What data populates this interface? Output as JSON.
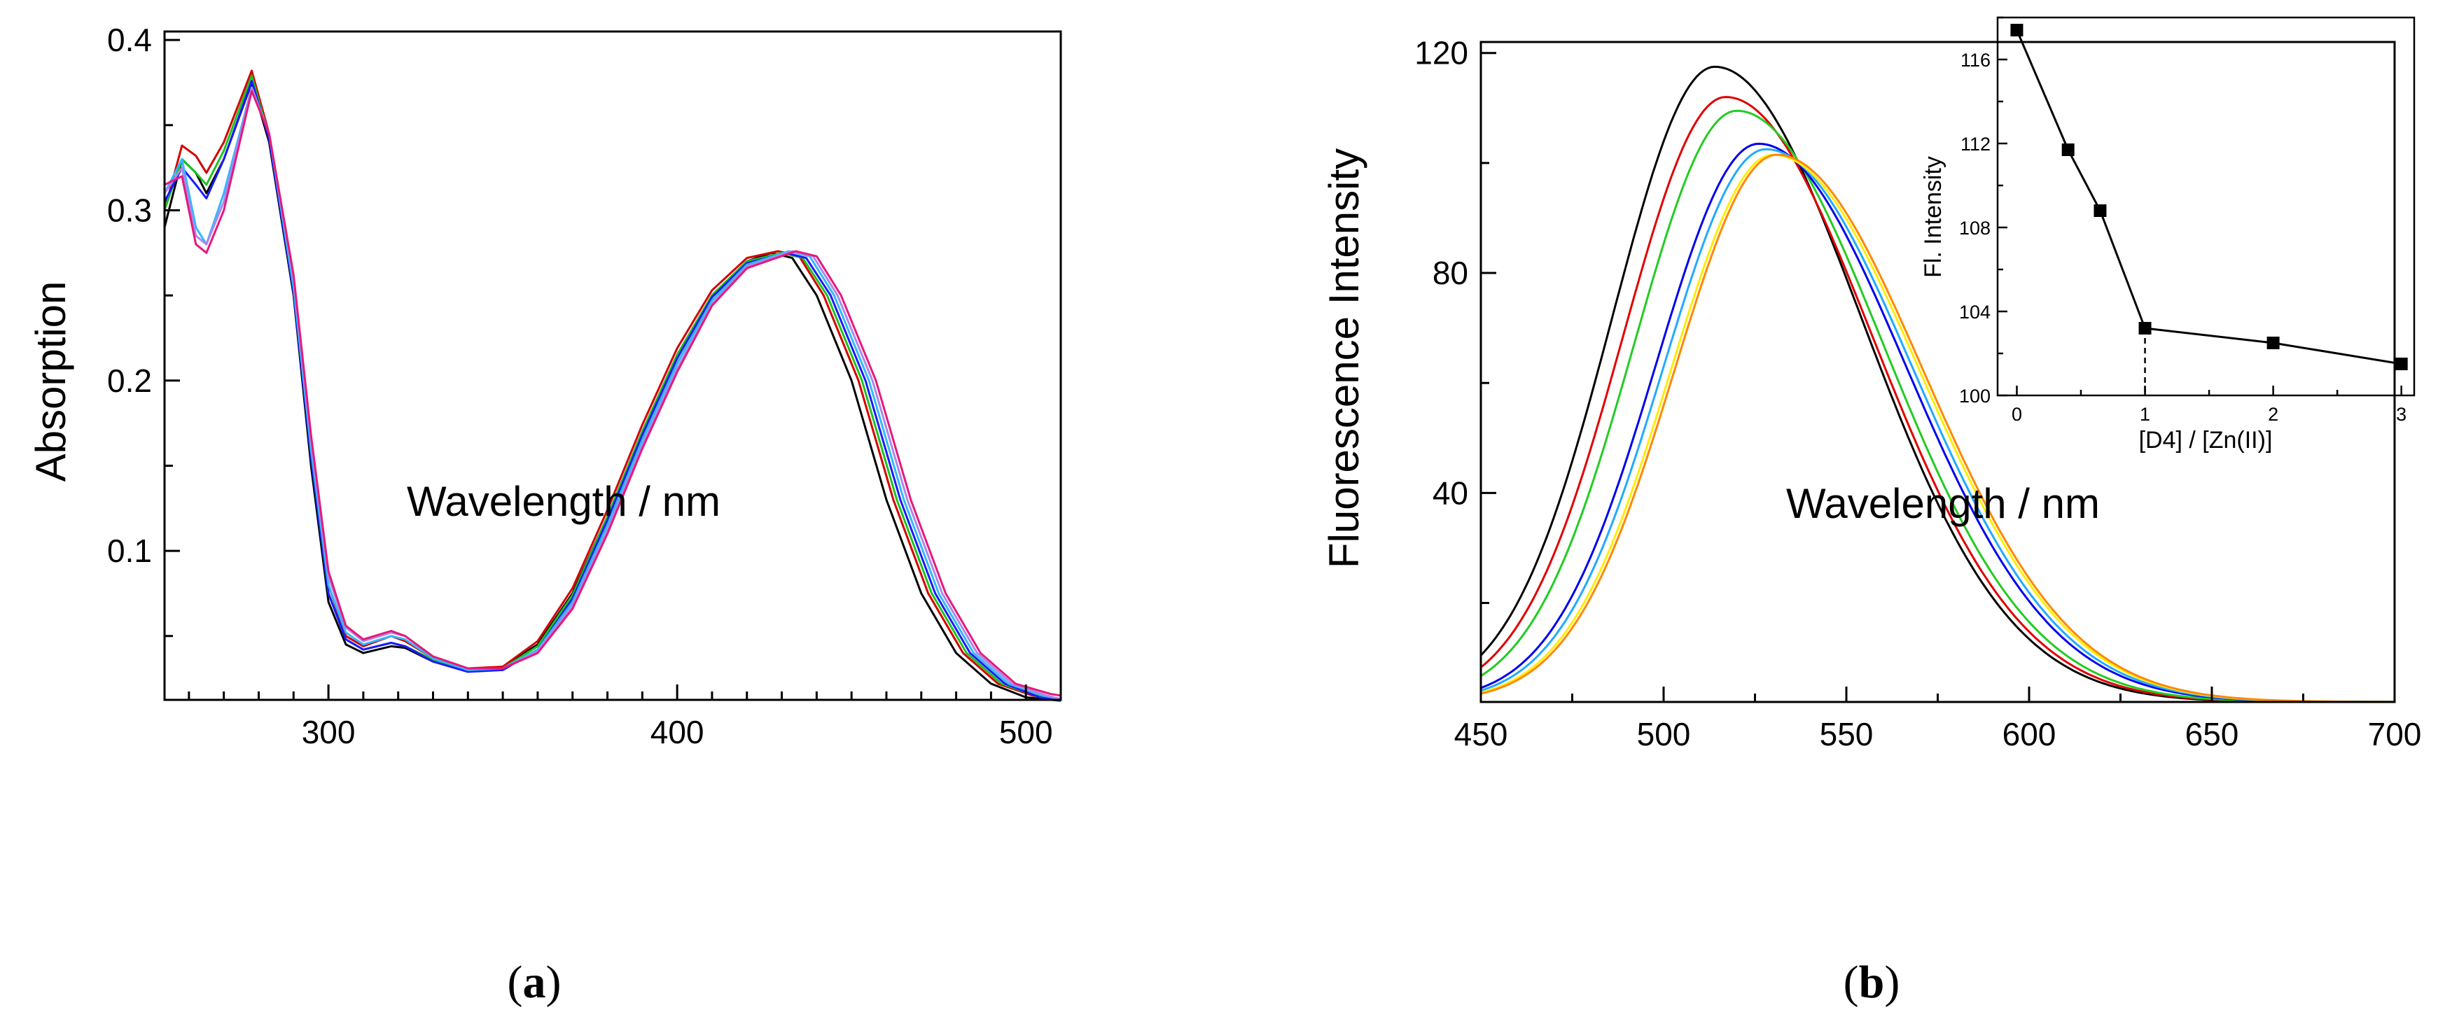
{
  "chart_data": [
    {
      "id": "a",
      "type": "line",
      "caption": "a",
      "title": "",
      "xlabel": "Wavelength / nm",
      "ylabel": "Absorption",
      "xlim": [
        253,
        510
      ],
      "ylim": [
        0.0125,
        0.405
      ],
      "xticks_labeled": [
        300,
        400,
        500
      ],
      "yticks_labeled": [
        0.1,
        0.2,
        0.3,
        0.4
      ],
      "xtick_labels": [
        "300",
        "400",
        "500"
      ],
      "ytick_labels": [
        "0.1",
        "0.2",
        "0.3",
        "0.4"
      ],
      "grid": false,
      "series": [
        {
          "name": "black",
          "color": "#000000",
          "x": [
            253,
            258,
            262,
            265,
            270,
            278,
            283,
            290,
            295,
            300,
            305,
            310,
            318,
            322,
            330,
            340,
            350,
            360,
            370,
            380,
            390,
            400,
            410,
            420,
            427,
            433,
            440,
            450,
            460,
            470,
            480,
            490,
            500,
            510
          ],
          "y": [
            0.29,
            0.33,
            0.322,
            0.31,
            0.33,
            0.375,
            0.34,
            0.25,
            0.15,
            0.07,
            0.045,
            0.04,
            0.044,
            0.043,
            0.035,
            0.03,
            0.032,
            0.045,
            0.075,
            0.12,
            0.17,
            0.215,
            0.25,
            0.27,
            0.275,
            0.272,
            0.25,
            0.2,
            0.13,
            0.075,
            0.04,
            0.022,
            0.014,
            0.012
          ]
        },
        {
          "name": "red",
          "color": "#d40000",
          "x": [
            253,
            258,
            262,
            265,
            270,
            278,
            283,
            290,
            295,
            300,
            305,
            310,
            318,
            322,
            330,
            340,
            350,
            360,
            370,
            380,
            390,
            400,
            410,
            420,
            429,
            435,
            442,
            452,
            462,
            472,
            482,
            492,
            502,
            510
          ],
          "y": [
            0.3,
            0.338,
            0.332,
            0.322,
            0.34,
            0.382,
            0.345,
            0.255,
            0.16,
            0.08,
            0.05,
            0.044,
            0.05,
            0.047,
            0.037,
            0.031,
            0.032,
            0.047,
            0.078,
            0.124,
            0.174,
            0.219,
            0.253,
            0.272,
            0.276,
            0.273,
            0.25,
            0.2,
            0.13,
            0.075,
            0.04,
            0.022,
            0.015,
            0.013
          ]
        },
        {
          "name": "green",
          "color": "#1ec21e",
          "x": [
            253,
            258,
            262,
            265,
            270,
            278,
            283,
            290,
            295,
            300,
            305,
            310,
            318,
            322,
            330,
            340,
            350,
            360,
            370,
            380,
            390,
            400,
            410,
            420,
            430,
            436,
            443,
            453,
            463,
            473,
            483,
            493,
            503,
            510
          ],
          "y": [
            0.3,
            0.33,
            0.322,
            0.315,
            0.335,
            0.379,
            0.343,
            0.253,
            0.155,
            0.075,
            0.048,
            0.042,
            0.046,
            0.044,
            0.036,
            0.03,
            0.031,
            0.044,
            0.074,
            0.12,
            0.17,
            0.215,
            0.25,
            0.27,
            0.275,
            0.272,
            0.25,
            0.2,
            0.13,
            0.075,
            0.04,
            0.022,
            0.015,
            0.013
          ]
        },
        {
          "name": "blue",
          "color": "#1a1aff",
          "x": [
            253,
            258,
            262,
            265,
            270,
            278,
            283,
            290,
            295,
            300,
            305,
            310,
            318,
            322,
            330,
            340,
            350,
            360,
            370,
            380,
            390,
            400,
            410,
            420,
            431,
            437,
            444,
            454,
            464,
            474,
            484,
            494,
            504,
            510
          ],
          "y": [
            0.305,
            0.325,
            0.315,
            0.307,
            0.33,
            0.376,
            0.342,
            0.252,
            0.155,
            0.075,
            0.048,
            0.042,
            0.046,
            0.044,
            0.035,
            0.029,
            0.03,
            0.042,
            0.072,
            0.118,
            0.168,
            0.213,
            0.249,
            0.269,
            0.275,
            0.272,
            0.25,
            0.2,
            0.13,
            0.075,
            0.04,
            0.022,
            0.014,
            0.012
          ]
        },
        {
          "name": "cyan",
          "color": "#33b8ff",
          "x": [
            253,
            258,
            262,
            265,
            270,
            278,
            283,
            290,
            295,
            300,
            305,
            310,
            318,
            322,
            330,
            340,
            350,
            360,
            370,
            380,
            390,
            400,
            410,
            420,
            432,
            438,
            445,
            455,
            465,
            475,
            485,
            495,
            505,
            510
          ],
          "y": [
            0.31,
            0.33,
            0.29,
            0.28,
            0.31,
            0.372,
            0.345,
            0.255,
            0.16,
            0.08,
            0.052,
            0.045,
            0.05,
            0.048,
            0.037,
            0.03,
            0.031,
            0.042,
            0.07,
            0.115,
            0.165,
            0.21,
            0.247,
            0.268,
            0.276,
            0.273,
            0.25,
            0.2,
            0.13,
            0.075,
            0.04,
            0.022,
            0.015,
            0.013
          ]
        },
        {
          "name": "violet",
          "color": "#aa88ee",
          "x": [
            253,
            258,
            262,
            265,
            270,
            278,
            283,
            290,
            295,
            300,
            305,
            310,
            318,
            322,
            330,
            340,
            350,
            360,
            370,
            380,
            390,
            400,
            410,
            420,
            433,
            439,
            446,
            456,
            466,
            476,
            486,
            496,
            506,
            510
          ],
          "y": [
            0.31,
            0.325,
            0.285,
            0.28,
            0.305,
            0.372,
            0.345,
            0.26,
            0.165,
            0.085,
            0.055,
            0.047,
            0.052,
            0.05,
            0.038,
            0.031,
            0.031,
            0.041,
            0.068,
            0.112,
            0.162,
            0.207,
            0.245,
            0.267,
            0.276,
            0.273,
            0.25,
            0.2,
            0.13,
            0.075,
            0.04,
            0.022,
            0.015,
            0.013
          ]
        },
        {
          "name": "magenta",
          "color": "#e6197a",
          "x": [
            253,
            258,
            262,
            265,
            270,
            278,
            283,
            290,
            295,
            300,
            305,
            310,
            318,
            322,
            330,
            340,
            350,
            360,
            370,
            380,
            390,
            400,
            410,
            420,
            434,
            440,
            447,
            457,
            467,
            477,
            487,
            497,
            507,
            510
          ],
          "y": [
            0.315,
            0.32,
            0.28,
            0.275,
            0.3,
            0.37,
            0.345,
            0.262,
            0.168,
            0.088,
            0.056,
            0.048,
            0.053,
            0.05,
            0.038,
            0.031,
            0.031,
            0.04,
            0.066,
            0.11,
            0.16,
            0.205,
            0.244,
            0.266,
            0.276,
            0.273,
            0.25,
            0.2,
            0.13,
            0.075,
            0.04,
            0.022,
            0.016,
            0.015
          ]
        }
      ]
    },
    {
      "id": "b",
      "type": "line",
      "caption": "b",
      "title": "",
      "xlabel": "Wavelength / nm",
      "ylabel": "Fluorescence Intensity",
      "xlim": [
        450,
        700
      ],
      "ylim": [
        2,
        122
      ],
      "xticks_labeled": [
        450,
        500,
        550,
        600,
        650,
        700
      ],
      "yticks_labeled": [
        40,
        80,
        120
      ],
      "xtick_labels": [
        "450",
        "500",
        "550",
        "600",
        "650",
        "700"
      ],
      "ytick_labels": [
        "40",
        "80",
        "120"
      ],
      "grid": false,
      "series": [
        {
          "name": "black",
          "color": "#000000",
          "peak_wavelength": 514,
          "peak_intensity": 117.5
        },
        {
          "name": "red",
          "color": "#e00000",
          "peak_wavelength": 517,
          "peak_intensity": 112
        },
        {
          "name": "green",
          "color": "#22cc22",
          "peak_wavelength": 520,
          "peak_intensity": 109.5
        },
        {
          "name": "blue",
          "color": "#0000ee",
          "peak_wavelength": 526,
          "peak_intensity": 103.5
        },
        {
          "name": "cyan",
          "color": "#22aaff",
          "peak_wavelength": 528,
          "peak_intensity": 102.5
        },
        {
          "name": "yellow",
          "color": "#ffee00",
          "peak_wavelength": 530,
          "peak_intensity": 101.5
        },
        {
          "name": "orange",
          "color": "#ff8800",
          "peak_wavelength": 531,
          "peak_intensity": 101.5
        }
      ],
      "inset": {
        "type": "line",
        "xlabel": "[D4] / [Zn(II)]",
        "ylabel": "Fl. Intensity",
        "xlim": [
          -0.15,
          3.1
        ],
        "ylim": [
          100,
          118
        ],
        "xtick_labels": [
          "0",
          "1",
          "2",
          "3"
        ],
        "xticks": [
          0,
          1,
          2,
          3
        ],
        "ytick_labels": [
          "100",
          "104",
          "108",
          "112",
          "116"
        ],
        "yticks": [
          100,
          104,
          108,
          112,
          116
        ],
        "x": [
          0,
          0.4,
          0.65,
          1,
          2,
          3
        ],
        "y": [
          117.4,
          111.7,
          108.8,
          103.2,
          102.5,
          101.5
        ],
        "marker": "square",
        "dashed_guide_x": 1
      }
    }
  ]
}
